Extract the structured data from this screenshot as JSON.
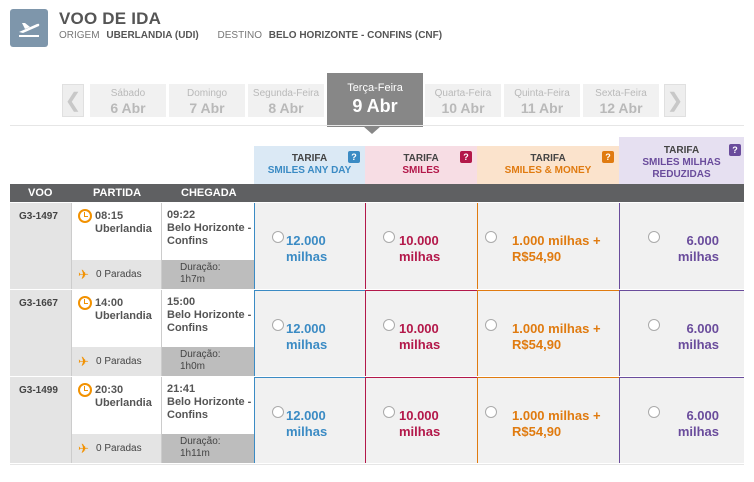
{
  "header": {
    "title": "VOO DE IDA",
    "origin_label": "ORIGEM",
    "origin_value": "UBERLANDIA (UDI)",
    "destination_label": "DESTINO",
    "destination_value": "BELO HORIZONTE - CONFINS (CNF)"
  },
  "dates": [
    {
      "day": "Sábado",
      "date": "6 Abr"
    },
    {
      "day": "Domingo",
      "date": "7 Abr"
    },
    {
      "day": "Segunda-Feira",
      "date": "8 Abr"
    },
    {
      "day": "Terça-Feira",
      "date": "9 Abr"
    },
    {
      "day": "Quarta-Feira",
      "date": "10 Abr"
    },
    {
      "day": "Quinta-Feira",
      "date": "11 Abr"
    },
    {
      "day": "Sexta-Feira",
      "date": "12 Abr"
    }
  ],
  "fares": [
    {
      "label": "TARIFA",
      "name": "SMILES ANY DAY",
      "color": "#3b8bc4"
    },
    {
      "label": "TARIFA",
      "name": "SMILES",
      "color": "#b3184a"
    },
    {
      "label": "TARIFA",
      "name": "SMILES & MONEY",
      "color": "#e07b10"
    },
    {
      "label": "TARIFA",
      "name": "SMILES MILHAS REDUZIDAS",
      "color": "#6a4c9c"
    }
  ],
  "help_glyph": "?",
  "columns": {
    "flight": "VOO",
    "departure": "PARTIDA",
    "arrival": "CHEGADA"
  },
  "flights": [
    {
      "number": "G3-1497",
      "dep_time": "08:15",
      "dep_city": "Uberlandia",
      "arr_time": "09:22",
      "arr_city": "Belo Horizonte - Confins",
      "stops": "0 Paradas",
      "duration_label": "Duração:",
      "duration": "1h7m",
      "prices": [
        "12.000 milhas",
        "10.000 milhas",
        "1.000 milhas + R$54,90",
        "6.000 milhas"
      ]
    },
    {
      "number": "G3-1667",
      "dep_time": "14:00",
      "dep_city": "Uberlandia",
      "arr_time": "15:00",
      "arr_city": "Belo Horizonte - Confins",
      "stops": "0 Paradas",
      "duration_label": "Duração:",
      "duration": "1h0m",
      "prices": [
        "12.000 milhas",
        "10.000 milhas",
        "1.000 milhas + R$54,90",
        "6.000 milhas"
      ]
    },
    {
      "number": "G3-1499",
      "dep_time": "20:30",
      "dep_city": "Uberlandia",
      "arr_time": "21:41",
      "arr_city": "Belo Horizonte - Confins",
      "stops": "0 Paradas",
      "duration_label": "Duração:",
      "duration": "1h11m",
      "prices": [
        "12.000 milhas",
        "10.000 milhas",
        "1.000 milhas + R$54,90",
        "6.000 milhas"
      ]
    }
  ],
  "icons": {
    "header": "plane-takeoff-icon",
    "prev": "chevron-left-icon",
    "next": "chevron-right-icon",
    "stops": "plane-icon",
    "time": "clock-icon"
  },
  "glyphs": {
    "prev": "❮",
    "next": "❯",
    "plane": "✈"
  }
}
